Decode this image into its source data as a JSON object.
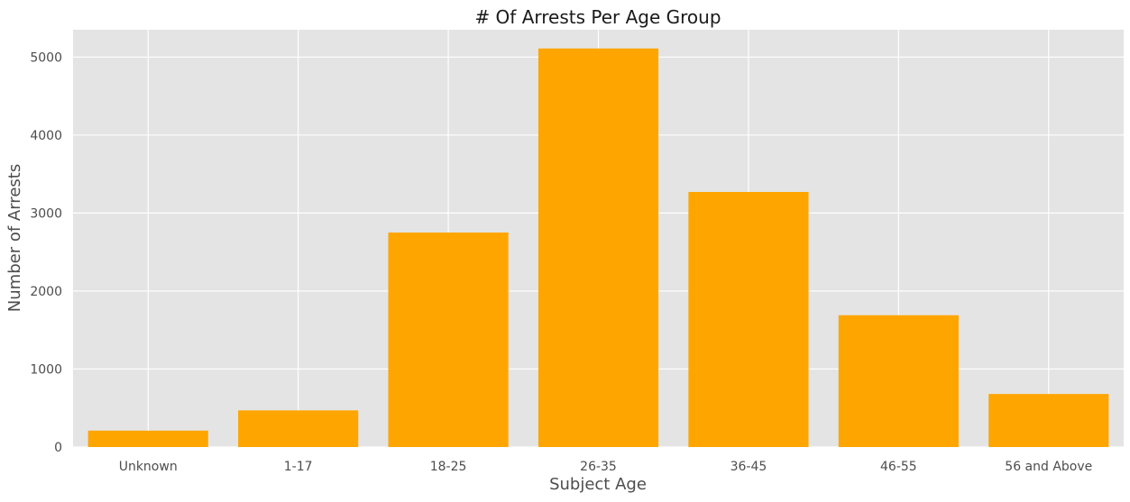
{
  "chart_data": {
    "type": "bar",
    "title": "# Of Arrests Per Age Group",
    "xlabel": "Subject Age",
    "ylabel": "Number of Arrests",
    "categories": [
      "Unknown",
      "1-17",
      "18-25",
      "26-35",
      "36-45",
      "46-55",
      "56 and Above"
    ],
    "values": [
      210,
      470,
      2750,
      5110,
      3270,
      1690,
      680
    ],
    "ylim": [
      0,
      5350
    ],
    "yticks": [
      0,
      1000,
      2000,
      3000,
      4000,
      5000
    ],
    "grid": true,
    "legend": "none",
    "colors": {
      "bar": "#FFA500",
      "background": "#E4E4E4",
      "grid": "#FFFFFF"
    }
  }
}
